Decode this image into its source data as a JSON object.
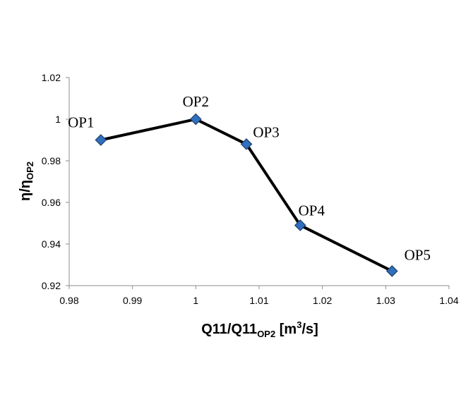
{
  "chart_data": {
    "type": "line",
    "xlabel": {
      "main": "Q11/Q11",
      "sub": "OP2",
      "tail": " [m",
      "sup": "3",
      "end": "/s]"
    },
    "ylabel": {
      "main": "η/η",
      "sub": "OP2"
    },
    "xlim": [
      0.98,
      1.04
    ],
    "ylim": [
      0.92,
      1.02
    ],
    "x_ticks": [
      0.98,
      0.99,
      1,
      1.01,
      1.02,
      1.03,
      1.04
    ],
    "x_tick_labels": [
      "0.98",
      "0.99",
      "1",
      "1.01",
      "1.02",
      "1.03",
      "1.04"
    ],
    "y_ticks": [
      0.92,
      0.94,
      0.96,
      0.98,
      1,
      1.02
    ],
    "y_tick_labels": [
      "0.92",
      "0.94",
      "0.96",
      "0.98",
      "1",
      "1.02"
    ],
    "grid": false,
    "legend": "none",
    "series": [
      {
        "points": [
          {
            "label": "OP1",
            "x": 0.985,
            "y": 0.99
          },
          {
            "label": "OP2",
            "x": 1.0,
            "y": 1.0
          },
          {
            "label": "OP3",
            "x": 1.008,
            "y": 0.988
          },
          {
            "label": "OP4",
            "x": 1.0165,
            "y": 0.949
          },
          {
            "label": "OP5",
            "x": 1.031,
            "y": 0.927
          }
        ]
      }
    ],
    "colors": {
      "line": "#000000",
      "marker_fill": "#2F6FBF",
      "marker_stroke": "#1F3F66",
      "axis": "#8C8C8C"
    }
  }
}
